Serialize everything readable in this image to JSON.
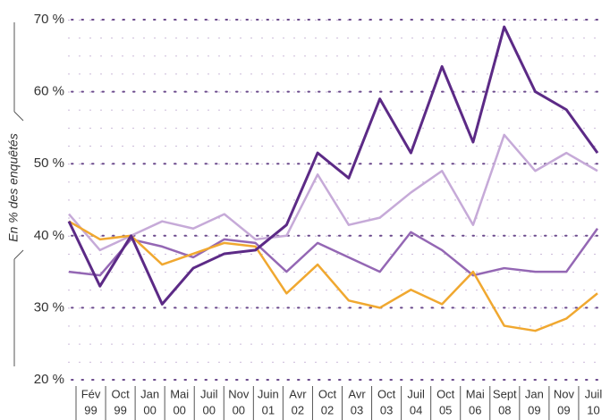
{
  "chart_data": {
    "type": "line",
    "y_label": "En % des enquêtés",
    "categories": [
      [
        "Fév",
        "99"
      ],
      [
        "Oct",
        "99"
      ],
      [
        "Jan",
        "00"
      ],
      [
        "Mai",
        "00"
      ],
      [
        "Juil",
        "00"
      ],
      [
        "Nov",
        "00"
      ],
      [
        "Juin",
        "01"
      ],
      [
        "Avr",
        "02"
      ],
      [
        "Oct",
        "02"
      ],
      [
        "Avr",
        "03"
      ],
      [
        "Oct",
        "03"
      ],
      [
        "Juil",
        "04"
      ],
      [
        "Oct",
        "05"
      ],
      [
        "Mai",
        "06"
      ],
      [
        "Sept",
        "08"
      ],
      [
        "Jan",
        "09"
      ],
      [
        "Nov",
        "09"
      ],
      [
        "Juil",
        "10"
      ]
    ],
    "series": [
      {
        "color": "#c6aad8",
        "values": [
          43,
          38,
          40,
          42,
          41,
          43,
          39.5,
          40,
          48.5,
          41.5,
          42.5,
          46,
          49,
          41.5,
          54,
          49,
          51.5,
          49
        ]
      },
      {
        "color": "#9467b4",
        "values": [
          35,
          34.5,
          39.5,
          38.5,
          37,
          39.5,
          39,
          35,
          39,
          37,
          35,
          40.5,
          38,
          34.5,
          35.5,
          35,
          35,
          41
        ]
      },
      {
        "color": "#f0a830",
        "values": [
          42,
          39.5,
          40,
          36,
          37.5,
          39,
          38.5,
          32,
          36,
          31,
          30,
          32.5,
          30.5,
          35,
          27.5,
          26.8,
          28.5,
          32
        ]
      },
      {
        "color": "#5c2a86",
        "values": [
          42,
          33,
          40,
          30.5,
          35.5,
          37.5,
          38,
          41.5,
          51.5,
          48,
          59,
          51.5,
          63.5,
          53,
          69,
          60,
          57.5,
          51.5
        ]
      }
    ],
    "ylim": [
      20,
      70
    ],
    "yticks": [
      {
        "value": 20,
        "label": "20 %"
      },
      {
        "value": 30,
        "label": "30 %"
      },
      {
        "value": 40,
        "label": "40 %"
      },
      {
        "value": 50,
        "label": "50 %"
      },
      {
        "value": 60,
        "label": "60 %"
      },
      {
        "value": 70,
        "label": "70 %"
      }
    ],
    "grid": true
  }
}
